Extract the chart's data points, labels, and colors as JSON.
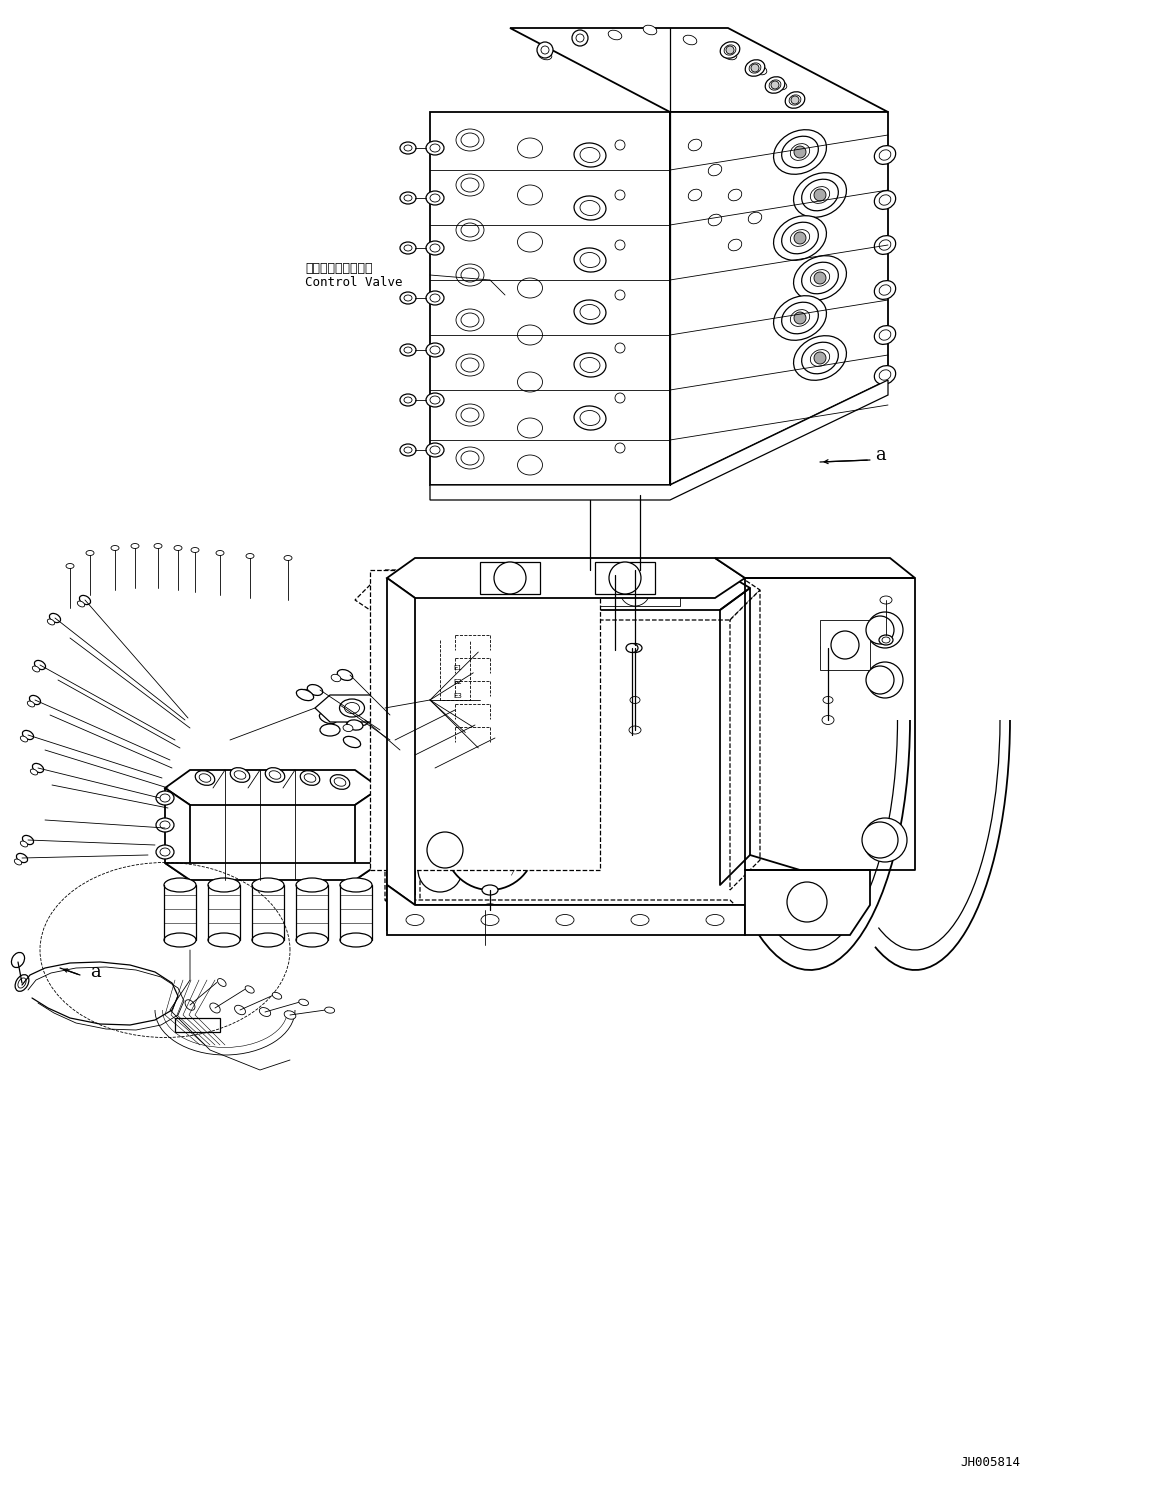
{
  "figure_width": 11.49,
  "figure_height": 14.91,
  "dpi": 100,
  "background_color": "#ffffff",
  "line_color": "#000000",
  "part_code": "JH005814",
  "label_japanese": "コントロールバルブ",
  "label_english": "Control Valve",
  "label_a": "a"
}
